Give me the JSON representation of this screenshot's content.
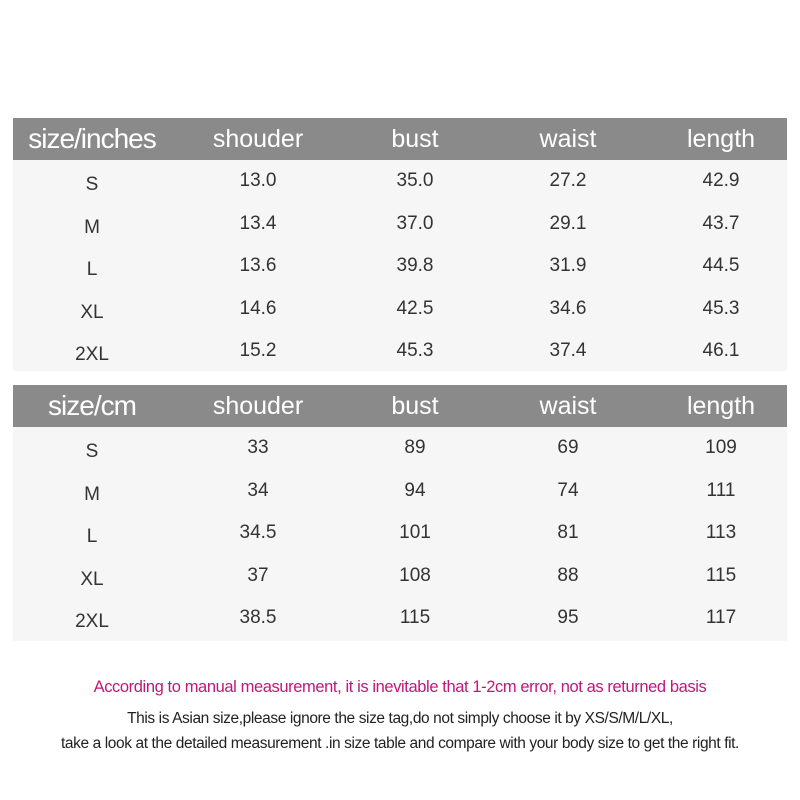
{
  "tables": [
    {
      "headers": [
        "size/inches",
        "shouder",
        "bust",
        "waist",
        "length"
      ],
      "rows": [
        [
          "S",
          "13.0",
          "35.0",
          "27.2",
          "42.9"
        ],
        [
          "M",
          "13.4",
          "37.0",
          "29.1",
          "43.7"
        ],
        [
          "L",
          "13.6",
          "39.8",
          "31.9",
          "44.5"
        ],
        [
          "XL",
          "14.6",
          "42.5",
          "34.6",
          "45.3"
        ],
        [
          "2XL",
          "15.2",
          "45.3",
          "37.4",
          "46.1"
        ]
      ]
    },
    {
      "headers": [
        "size/cm",
        "shouder",
        "bust",
        "waist",
        "length"
      ],
      "rows": [
        [
          "S",
          "33",
          "89",
          "69",
          "109"
        ],
        [
          "M",
          "34",
          "94",
          "74",
          "111"
        ],
        [
          "L",
          "34.5",
          "101",
          "81",
          "113"
        ],
        [
          "XL",
          "37",
          "108",
          "88",
          "115"
        ],
        [
          "2XL",
          "38.5",
          "115",
          "95",
          "117"
        ]
      ]
    }
  ],
  "notes": {
    "warning": "According to manual measurement, it is inevitable that 1-2cm error, not as returned basis",
    "line1": "This is Asian size,please ignore the size tag,do not simply choose it by XS/S/M/L/XL,",
    "line2": "take a look at the detailed measurement .in size table and compare with your body size to get the right fit."
  },
  "colors": {
    "header_bg": "#8a8a8a",
    "warning_text": "#c0177a",
    "row_bg": "#f6f6f6"
  }
}
